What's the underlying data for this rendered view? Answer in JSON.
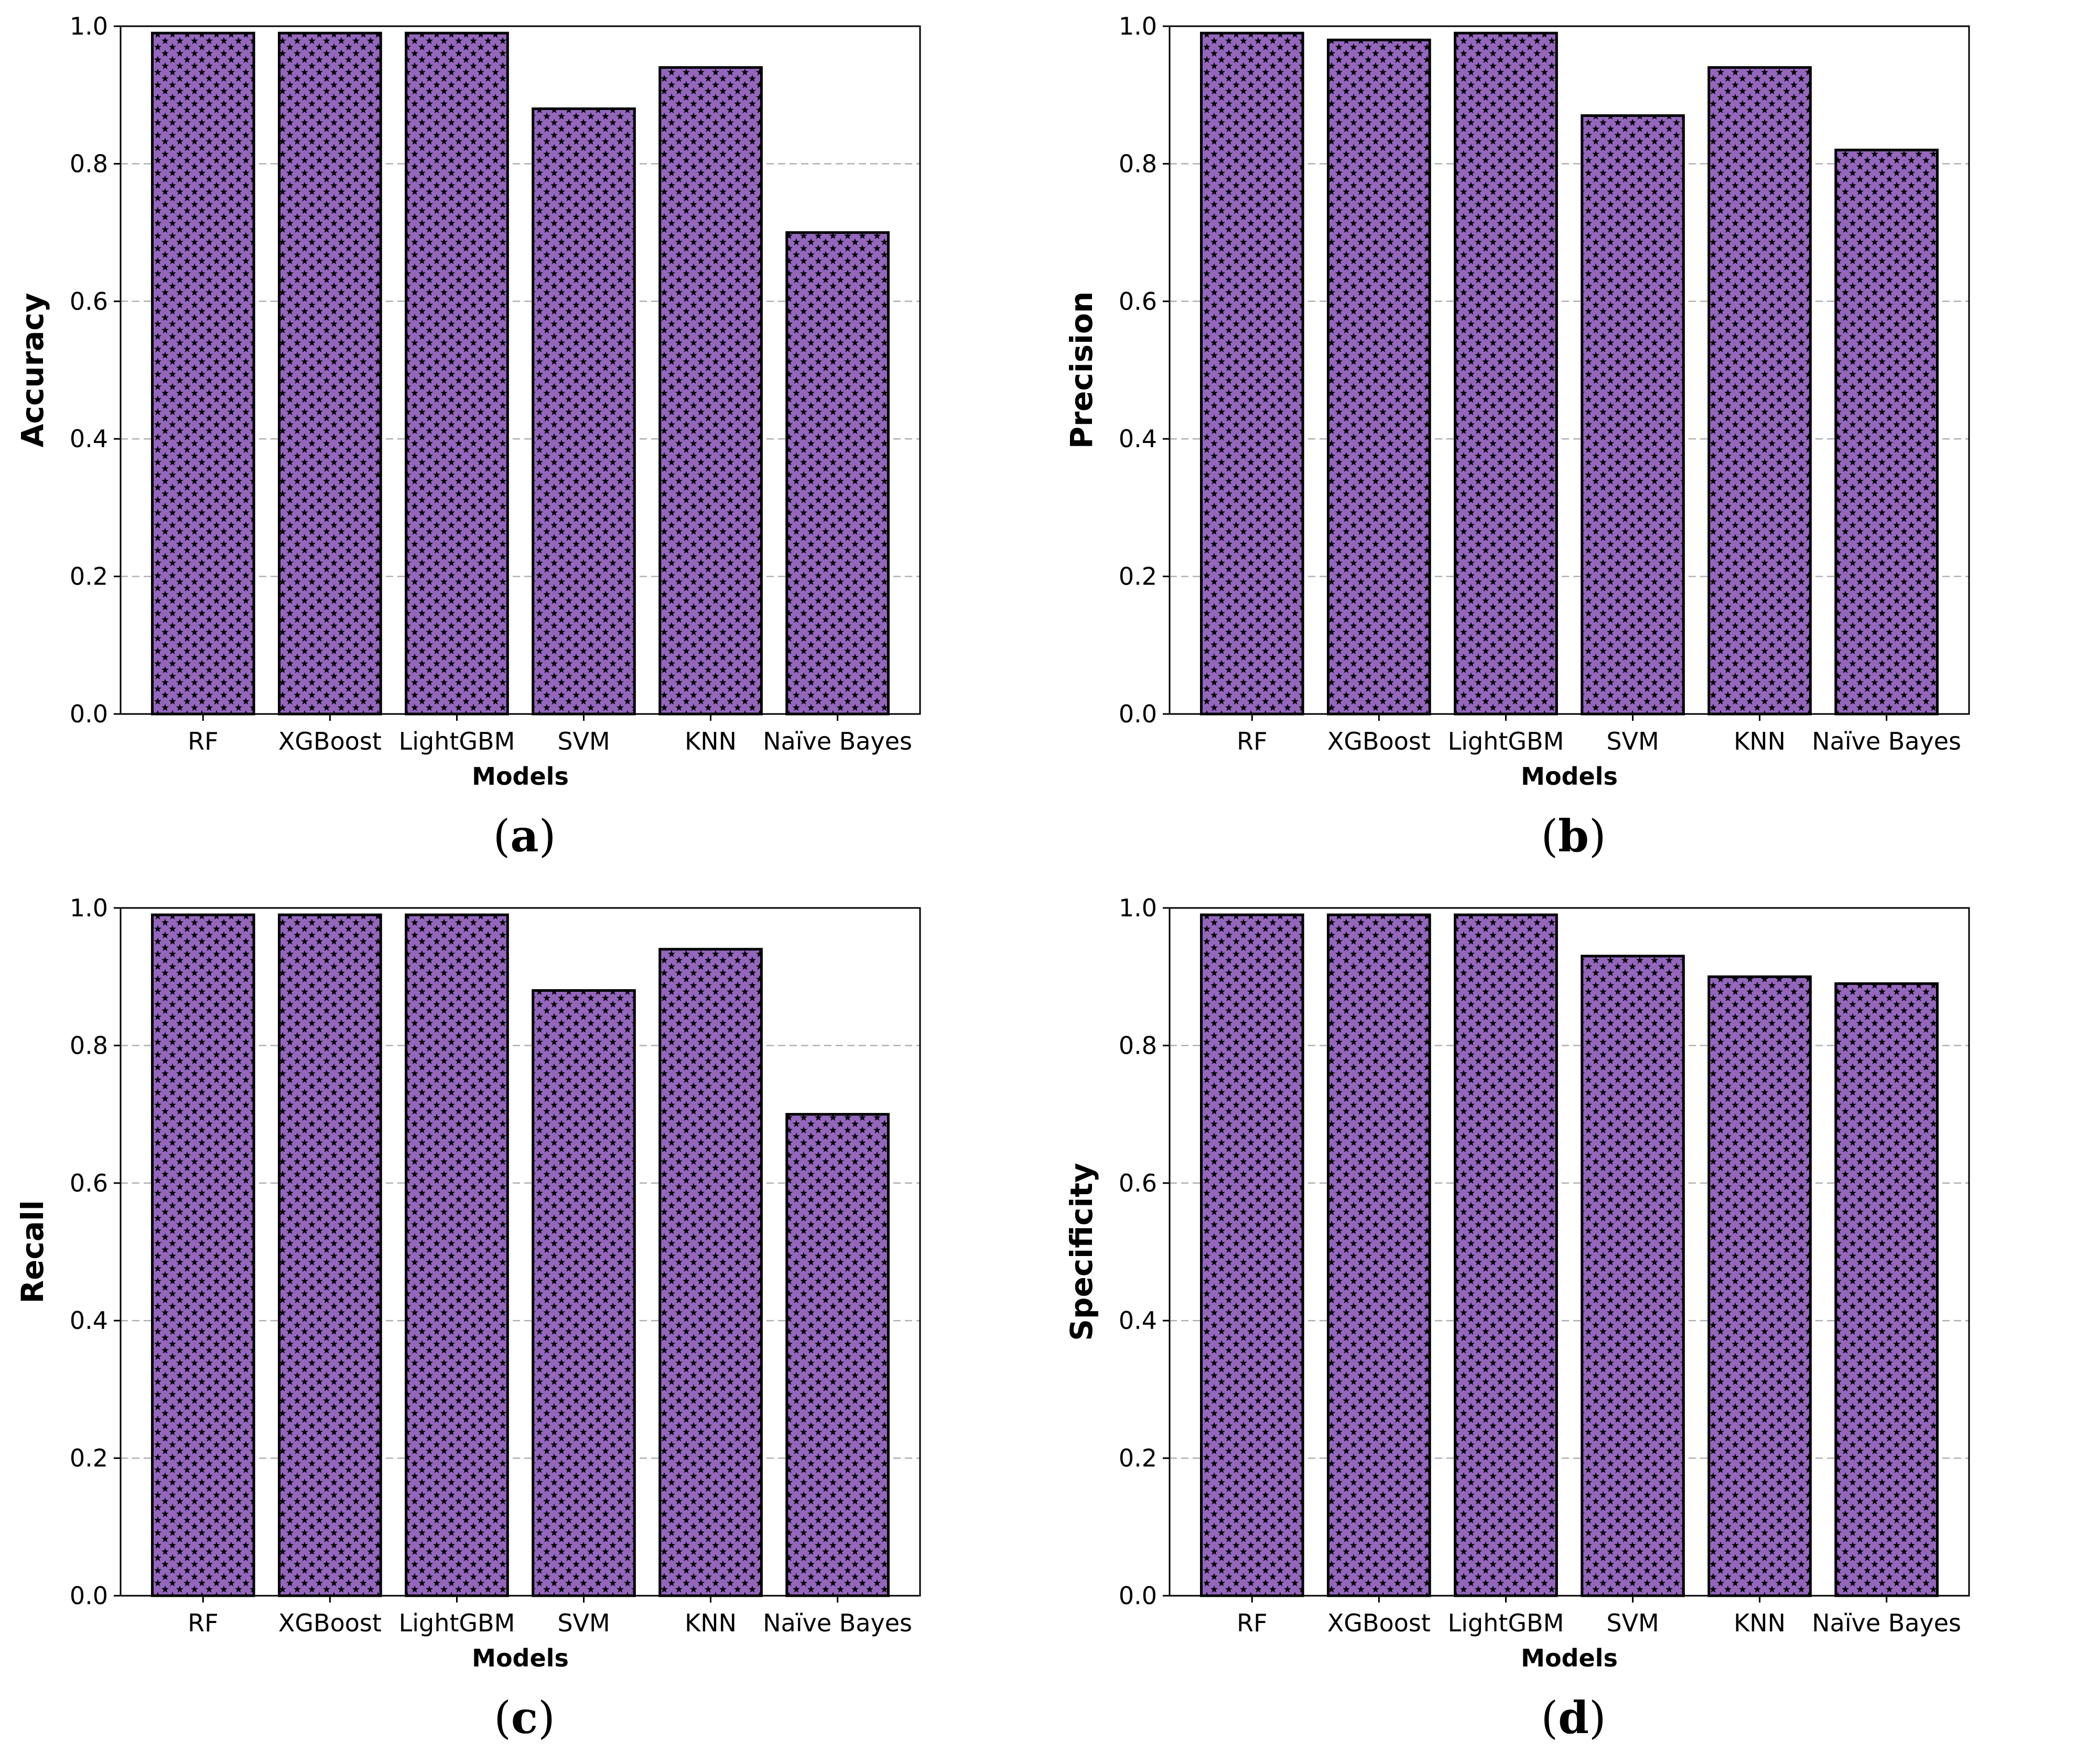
{
  "colors": {
    "bar_fill": "#9467bd",
    "bar_pattern": "#000000",
    "bar_edge": "#000000",
    "grid": "#b0b0b0"
  },
  "chart_data": [
    {
      "type": "bar",
      "caption": "a",
      "categories": [
        "RF",
        "XGBoost",
        "LightGBM",
        "SVM",
        "KNN",
        "Naïve Bayes"
      ],
      "values": [
        0.99,
        0.99,
        0.99,
        0.88,
        0.94,
        0.7
      ],
      "xlabel": "Models",
      "ylabel": "Accuracy",
      "ylim": [
        0,
        1.0
      ],
      "yticks": [
        "0.0",
        "0.2",
        "0.4",
        "0.6",
        "0.8",
        "1.0"
      ],
      "grid": "y-dashed"
    },
    {
      "type": "bar",
      "caption": "b",
      "categories": [
        "RF",
        "XGBoost",
        "LightGBM",
        "SVM",
        "KNN",
        "Naïve Bayes"
      ],
      "values": [
        0.99,
        0.98,
        0.99,
        0.87,
        0.94,
        0.82
      ],
      "xlabel": "Models",
      "ylabel": "Precision",
      "ylim": [
        0,
        1.0
      ],
      "yticks": [
        "0.0",
        "0.2",
        "0.4",
        "0.6",
        "0.8",
        "1.0"
      ],
      "grid": "y-dashed"
    },
    {
      "type": "bar",
      "caption": "c",
      "categories": [
        "RF",
        "XGBoost",
        "LightGBM",
        "SVM",
        "KNN",
        "Naïve Bayes"
      ],
      "values": [
        0.99,
        0.99,
        0.99,
        0.88,
        0.94,
        0.7
      ],
      "xlabel": "Models",
      "ylabel": "Recall",
      "ylim": [
        0,
        1.0
      ],
      "yticks": [
        "0.0",
        "0.2",
        "0.4",
        "0.6",
        "0.8",
        "1.0"
      ],
      "grid": "y-dashed"
    },
    {
      "type": "bar",
      "caption": "d",
      "categories": [
        "RF",
        "XGBoost",
        "LightGBM",
        "SVM",
        "KNN",
        "Naïve Bayes"
      ],
      "values": [
        0.99,
        0.99,
        0.99,
        0.93,
        0.9,
        0.89
      ],
      "xlabel": "Models",
      "ylabel": "Specificity",
      "ylim": [
        0,
        1.0
      ],
      "yticks": [
        "0.0",
        "0.2",
        "0.4",
        "0.6",
        "0.8",
        "1.0"
      ],
      "grid": "y-dashed"
    }
  ]
}
